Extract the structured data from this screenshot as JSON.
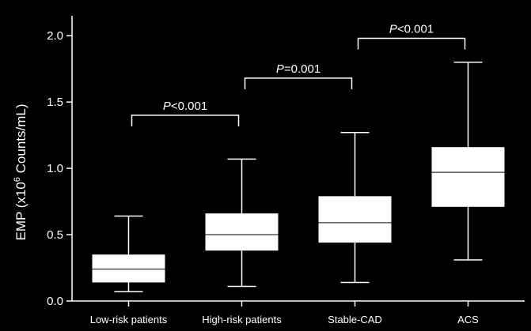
{
  "chart_data": {
    "type": "box",
    "categories": [
      "Low-risk patients",
      "High-risk patients",
      "Stable-CAD",
      "ACS"
    ],
    "boxes": [
      {
        "min": 0.07,
        "q1": 0.14,
        "median": 0.24,
        "q3": 0.35,
        "max": 0.64
      },
      {
        "min": 0.11,
        "q1": 0.38,
        "median": 0.5,
        "q3": 0.66,
        "max": 1.07
      },
      {
        "min": 0.14,
        "q1": 0.44,
        "median": 0.59,
        "q3": 0.79,
        "max": 1.27
      },
      {
        "min": 0.31,
        "q1": 0.71,
        "median": 0.97,
        "q3": 1.16,
        "max": 1.8
      }
    ],
    "ylabel": {
      "prefix": "EMP (x10",
      "superscript": "6",
      "suffix": " Counts/mL)"
    },
    "ylim": [
      0,
      2.15
    ],
    "yticks": [
      "0.0",
      "0.5",
      "1.0",
      "1.5",
      "2.0"
    ],
    "grid": false,
    "comparisons": [
      {
        "from": 0,
        "to": 1,
        "p_label": "P",
        "p_value": "<0.001",
        "level": 1.4
      },
      {
        "from": 1,
        "to": 2,
        "p_label": "P",
        "p_value": "=0.001",
        "level": 1.68
      },
      {
        "from": 2,
        "to": 3,
        "p_label": "P",
        "p_value": "<0.001",
        "level": 1.98
      }
    ],
    "colors": {
      "background": "#000000",
      "box": "#ffffff",
      "median": "#000000",
      "lines": "#ffffff",
      "text": "#ffffff"
    }
  }
}
